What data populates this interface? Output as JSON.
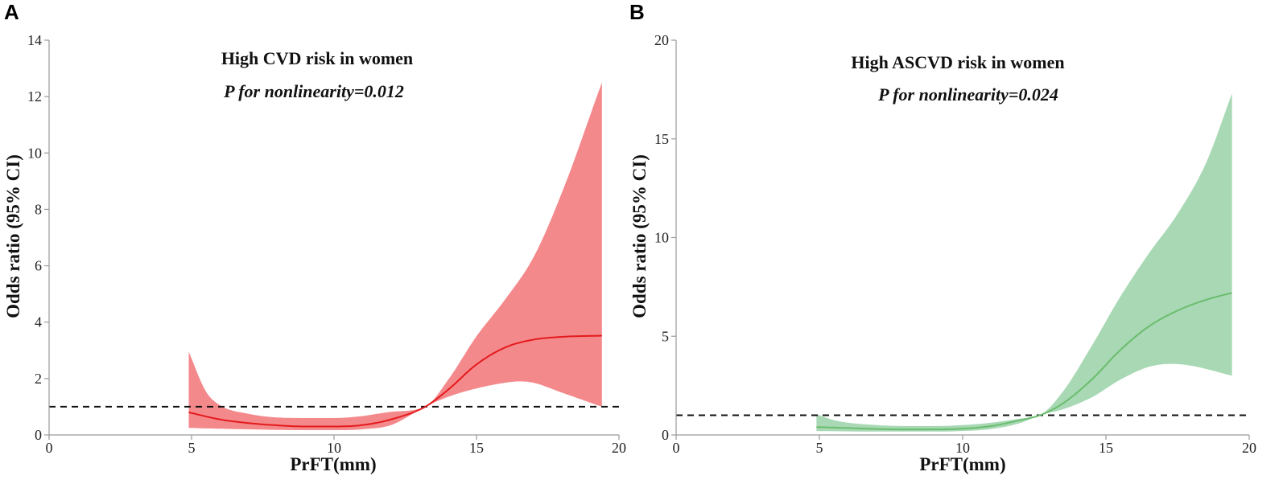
{
  "chart_data": [
    {
      "panel": "A",
      "type": "line",
      "title": "High CVD risk in women",
      "subtitle": "P for nonlinearity=0.012",
      "xlabel": "PrFT(mm)",
      "ylabel": "Odds ratio (95% CI)",
      "xlim": [
        0,
        20
      ],
      "ylim": [
        0,
        14
      ],
      "xticks": [
        0,
        5,
        10,
        15,
        20
      ],
      "yticks": [
        0,
        2,
        4,
        6,
        8,
        10,
        12,
        14
      ],
      "reference_line": 1,
      "line_color": "#e41a1c",
      "band_color": "#f4898c",
      "series": [
        {
          "name": "Odds ratio",
          "x": [
            4.9,
            6,
            7,
            8,
            9,
            10,
            11,
            12,
            13.2,
            14,
            15,
            16,
            17,
            18,
            19.4
          ],
          "values": [
            0.8,
            0.55,
            0.42,
            0.34,
            0.3,
            0.3,
            0.35,
            0.55,
            1.0,
            1.6,
            2.5,
            3.1,
            3.38,
            3.48,
            3.52
          ]
        },
        {
          "name": "Lower 95% CI",
          "x": [
            4.9,
            6,
            7,
            8,
            9,
            10,
            11,
            12,
            13.2,
            14,
            15,
            16,
            16.5,
            17,
            18,
            19.4
          ],
          "values": [
            0.25,
            0.22,
            0.2,
            0.18,
            0.17,
            0.17,
            0.2,
            0.35,
            1.0,
            1.35,
            1.65,
            1.85,
            1.9,
            1.85,
            1.5,
            1.0
          ]
        },
        {
          "name": "Upper 95% CI",
          "x": [
            4.9,
            5.5,
            6,
            7,
            8,
            9,
            10,
            11,
            12,
            13.2,
            14,
            15,
            16,
            17,
            18,
            19.4
          ],
          "values": [
            2.95,
            1.55,
            1.05,
            0.75,
            0.62,
            0.6,
            0.6,
            0.67,
            0.82,
            1.0,
            1.95,
            3.5,
            4.8,
            6.3,
            8.6,
            12.5
          ]
        }
      ]
    },
    {
      "panel": "B",
      "type": "line",
      "title": "High ASCVD risk in women",
      "subtitle": "P for nonlinearity=0.024",
      "xlabel": "PrFT(mm)",
      "ylabel": "Odds ratio (95% CI)",
      "xlim": [
        0,
        20
      ],
      "ylim": [
        0,
        20
      ],
      "xticks": [
        0,
        5,
        10,
        15,
        20
      ],
      "yticks": [
        0,
        5,
        10,
        15,
        20
      ],
      "reference_line": 1,
      "line_color": "#6bbd6e",
      "band_color": "#a8d8b4",
      "series": [
        {
          "name": "Odds ratio",
          "x": [
            4.9,
            6,
            7,
            8,
            9,
            10,
            11,
            12,
            12.7,
            13.5,
            14.5,
            15.5,
            16.5,
            17.5,
            18.5,
            19.4
          ],
          "values": [
            0.4,
            0.35,
            0.3,
            0.28,
            0.28,
            0.32,
            0.45,
            0.75,
            1.0,
            1.6,
            2.8,
            4.3,
            5.5,
            6.3,
            6.85,
            7.2
          ]
        },
        {
          "name": "Lower 95% CI",
          "x": [
            4.9,
            6,
            7,
            8,
            9,
            10,
            11,
            12,
            12.7,
            13.5,
            14.5,
            15.5,
            16.5,
            17.3,
            18,
            19.4
          ],
          "values": [
            0.2,
            0.18,
            0.17,
            0.17,
            0.17,
            0.2,
            0.3,
            0.6,
            1.0,
            1.3,
            1.9,
            2.8,
            3.45,
            3.6,
            3.5,
            3.0
          ]
        },
        {
          "name": "Upper 95% CI",
          "x": [
            4.9,
            5.5,
            6,
            7,
            8,
            9,
            10,
            11,
            12,
            12.7,
            13.5,
            14.5,
            15.5,
            16.5,
            17.5,
            18.5,
            19.4
          ],
          "values": [
            1.05,
            0.75,
            0.62,
            0.5,
            0.45,
            0.45,
            0.5,
            0.62,
            0.82,
            1.0,
            2.2,
            4.5,
            7.0,
            9.2,
            11.2,
            13.8,
            17.3
          ]
        }
      ]
    }
  ]
}
